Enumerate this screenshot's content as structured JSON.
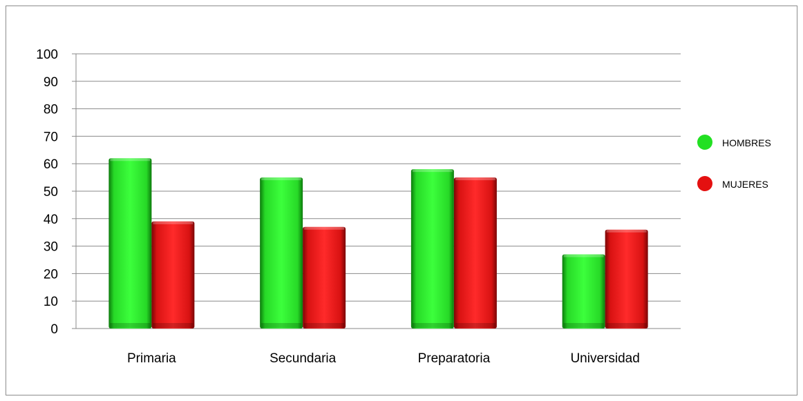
{
  "chart_data": {
    "type": "bar",
    "categories": [
      "Primaria",
      "Secundaria",
      "Preparatoria",
      "Universidad"
    ],
    "series": [
      {
        "name": "HOMBRES",
        "color": "#22e022",
        "values": [
          62,
          55,
          58,
          27
        ]
      },
      {
        "name": "MUJERES",
        "color": "#e41010",
        "values": [
          39,
          37,
          55,
          36
        ]
      }
    ],
    "title": "",
    "xlabel": "",
    "ylabel": "",
    "ylim": [
      0,
      100
    ],
    "yticks": [
      0,
      10,
      20,
      30,
      40,
      50,
      60,
      70,
      80,
      90,
      100
    ],
    "grid": true,
    "legend_position": "right"
  }
}
